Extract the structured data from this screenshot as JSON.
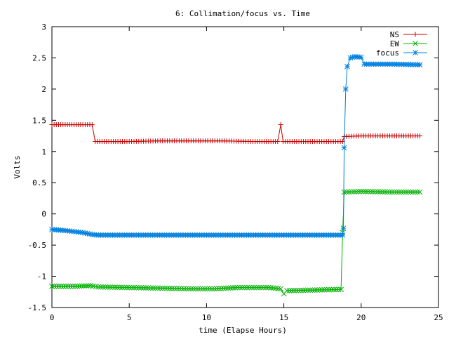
{
  "chart_data": {
    "type": "line",
    "title": "6: Collimation/focus vs. Time",
    "xlabel": "time (Elapse Hours)",
    "ylabel": "Volts",
    "xlim": [
      0,
      25
    ],
    "ylim": [
      -1.5,
      3
    ],
    "xticks": [
      0,
      5,
      10,
      15,
      20,
      25
    ],
    "yticks": [
      -1.5,
      -1,
      -0.5,
      0,
      0.5,
      1,
      1.5,
      2,
      2.5,
      3
    ],
    "grid": false,
    "legend": "top-right",
    "series": [
      {
        "name": "NS",
        "color": "#cc0000",
        "marker": "plus",
        "points": [
          [
            0,
            1.43
          ],
          [
            1,
            1.43
          ],
          [
            2,
            1.43
          ],
          [
            2.6,
            1.43
          ],
          [
            2.8,
            1.16
          ],
          [
            5,
            1.16
          ],
          [
            7,
            1.17
          ],
          [
            9,
            1.17
          ],
          [
            11,
            1.17
          ],
          [
            13,
            1.16
          ],
          [
            14.6,
            1.16
          ],
          [
            14.8,
            1.43
          ],
          [
            14.95,
            1.16
          ],
          [
            17,
            1.16
          ],
          [
            18.8,
            1.16
          ],
          [
            18.9,
            1.24
          ],
          [
            20,
            1.25
          ],
          [
            22,
            1.25
          ],
          [
            23.8,
            1.25
          ]
        ]
      },
      {
        "name": "EW",
        "color": "#00b000",
        "marker": "cross",
        "points": [
          [
            0,
            -1.16
          ],
          [
            1.5,
            -1.16
          ],
          [
            2.5,
            -1.15
          ],
          [
            3,
            -1.17
          ],
          [
            5,
            -1.18
          ],
          [
            7,
            -1.19
          ],
          [
            9,
            -1.2
          ],
          [
            10.5,
            -1.2
          ],
          [
            12,
            -1.18
          ],
          [
            14,
            -1.18
          ],
          [
            14.8,
            -1.2
          ],
          [
            15,
            -1.28
          ],
          [
            15.2,
            -1.23
          ],
          [
            17,
            -1.22
          ],
          [
            18.7,
            -1.21
          ],
          [
            18.8,
            -0.3
          ],
          [
            18.9,
            0.35
          ],
          [
            20,
            0.36
          ],
          [
            22,
            0.35
          ],
          [
            23.8,
            0.35
          ]
        ]
      },
      {
        "name": "focus",
        "color": "#0080e0",
        "marker": "star",
        "points": [
          [
            0,
            -0.25
          ],
          [
            1,
            -0.27
          ],
          [
            2,
            -0.3
          ],
          [
            2.6,
            -0.33
          ],
          [
            3,
            -0.34
          ],
          [
            5,
            -0.34
          ],
          [
            10,
            -0.34
          ],
          [
            15,
            -0.34
          ],
          [
            18.8,
            -0.34
          ],
          [
            18.85,
            -0.23
          ],
          [
            18.9,
            1.06
          ],
          [
            19,
            2.0
          ],
          [
            19.1,
            2.36
          ],
          [
            19.3,
            2.5
          ],
          [
            19.6,
            2.52
          ],
          [
            20,
            2.51
          ],
          [
            20.2,
            2.4
          ],
          [
            22,
            2.4
          ],
          [
            23.8,
            2.39
          ]
        ]
      }
    ]
  }
}
